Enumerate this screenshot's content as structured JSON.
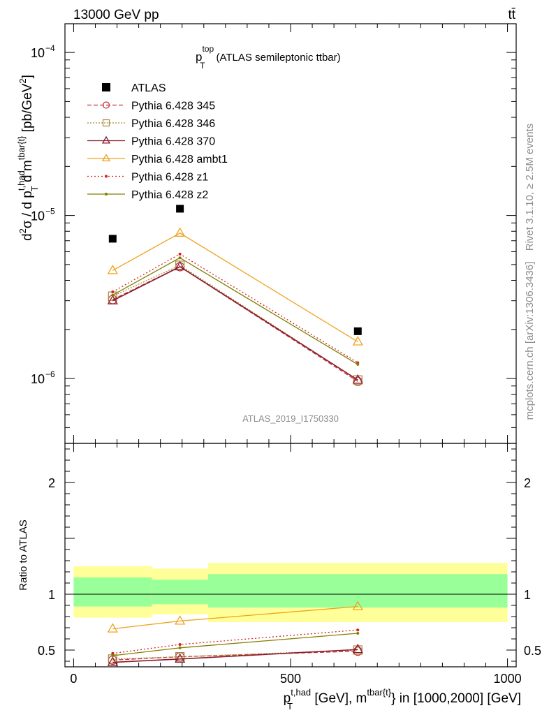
{
  "header": {
    "left_label": "13000 GeV pp",
    "right_label": "tt̄"
  },
  "side": {
    "rivet": "Rivet 3.1.10, ≥ 2.5M events",
    "mcplots": "mcplots.cern.ch [arXiv:1306.3436]"
  },
  "analysis_tag": "ATLAS_2019_I1750330",
  "main_title": {
    "symbol": "p",
    "sup": "top",
    "sub": "T",
    "text": "(ATLAS semileptonic ttbar)"
  },
  "ylabel_main": {
    "a": "d",
    "a_sup": "2",
    "b": "σ / d p",
    "b_sup": "t,had",
    "b_sub": "T",
    "c": " d m",
    "c_sup": "tbar{t}",
    "d": " [pb/GeV",
    "d_sup": "2",
    "e": "]"
  },
  "ylabel_ratio": "Ratio to ATLAS",
  "xlabel": {
    "a": "p",
    "a_sup": "t,had",
    "a_sub": "T",
    "b": " [GeV], m",
    "b_sup": "tbar{t}",
    "c": "} in [1000,2000] [GeV]"
  },
  "colors": {
    "data": "#000000",
    "py345": "#c0303a",
    "py346": "#a88a3a",
    "py370": "#8b1a2b",
    "ambt1": "#f0a21d",
    "z1": "#d62020",
    "z2": "#808000",
    "band_inner": "#99ff99",
    "band_outer": "#ffff99"
  },
  "chart_data": [
    {
      "type": "line",
      "panel": "main",
      "yscale": "log",
      "xlim": [
        -20,
        1020
      ],
      "ylim": [
        4e-07,
        0.00015
      ],
      "y_tick_labels": [
        {
          "value": 1e-06,
          "mant": "10",
          "exp": "−6"
        },
        {
          "value": 1e-05,
          "mant": "10",
          "exp": "−5"
        },
        {
          "value": 0.0001,
          "mant": "10",
          "exp": "−4"
        }
      ],
      "legend": [
        "ATLAS",
        "Pythia 6.428 345",
        "Pythia 6.428 346",
        "Pythia 6.428 370",
        "Pythia 6.428 ambt1",
        "Pythia 6.428 z1",
        "Pythia 6.428 z2"
      ],
      "data": {
        "name": "ATLAS",
        "x": [
          90,
          245,
          655
        ],
        "values": [
          7.2e-06,
          1.1e-05,
          1.95e-06
        ]
      },
      "series": [
        {
          "name": "Pythia 6.428 345",
          "key": "py345",
          "x": [
            90,
            245,
            655
          ],
          "values": [
            3.05e-06,
            4.85e-06,
            9.6e-07
          ]
        },
        {
          "name": "Pythia 6.428 346",
          "key": "py346",
          "x": [
            90,
            245,
            655
          ],
          "values": [
            3.2e-06,
            4.95e-06,
            9.8e-07
          ]
        },
        {
          "name": "Pythia 6.428 370",
          "key": "py370",
          "x": [
            90,
            245,
            655
          ],
          "values": [
            3e-06,
            4.85e-06,
            9.8e-07
          ]
        },
        {
          "name": "Pythia 6.428 ambt1",
          "key": "ambt1",
          "x": [
            90,
            245,
            655
          ],
          "values": [
            4.6e-06,
            7.8e-06,
            1.68e-06
          ]
        },
        {
          "name": "Pythia 6.428 z1",
          "key": "z1",
          "x": [
            90,
            245,
            655
          ],
          "values": [
            3.4e-06,
            5.8e-06,
            1.25e-06
          ]
        },
        {
          "name": "Pythia 6.428 z2",
          "key": "z2",
          "x": [
            90,
            245,
            655
          ],
          "values": [
            3.25e-06,
            5.5e-06,
            1.22e-06
          ]
        }
      ]
    },
    {
      "type": "line",
      "panel": "ratio",
      "xlim": [
        -20,
        1020
      ],
      "ylim": [
        0.35,
        2.35
      ],
      "x_ticks": [
        0,
        500,
        1000
      ],
      "y_ticks": [
        0.5,
        1,
        2
      ],
      "bands": [
        {
          "x": [
            0,
            180
          ],
          "outer": [
            0.79,
            1.25
          ],
          "inner": [
            0.89,
            1.15
          ]
        },
        {
          "x": [
            180,
            310
          ],
          "outer": [
            0.82,
            1.23
          ],
          "inner": [
            0.91,
            1.13
          ]
        },
        {
          "x": [
            310,
            1000
          ],
          "outer": [
            0.75,
            1.28
          ],
          "inner": [
            0.88,
            1.18
          ]
        }
      ],
      "series": [
        {
          "name": "Pythia 6.428 345",
          "key": "py345",
          "x": [
            90,
            245,
            655
          ],
          "values": [
            0.41,
            0.44,
            0.49
          ]
        },
        {
          "name": "Pythia 6.428 346",
          "key": "py346",
          "x": [
            90,
            245,
            655
          ],
          "values": [
            0.42,
            0.44,
            0.5
          ]
        },
        {
          "name": "Pythia 6.428 370",
          "key": "py370",
          "x": [
            90,
            245,
            655
          ],
          "values": [
            0.39,
            0.42,
            0.505
          ]
        },
        {
          "name": "Pythia 6.428 ambt1",
          "key": "ambt1",
          "x": [
            90,
            245,
            655
          ],
          "values": [
            0.69,
            0.76,
            0.89
          ]
        },
        {
          "name": "Pythia 6.428 z1",
          "key": "z1",
          "x": [
            90,
            245,
            655
          ],
          "values": [
            0.47,
            0.55,
            0.68
          ]
        },
        {
          "name": "Pythia 6.428 z2",
          "key": "z2",
          "x": [
            90,
            245,
            655
          ],
          "values": [
            0.45,
            0.52,
            0.65
          ]
        }
      ]
    }
  ]
}
